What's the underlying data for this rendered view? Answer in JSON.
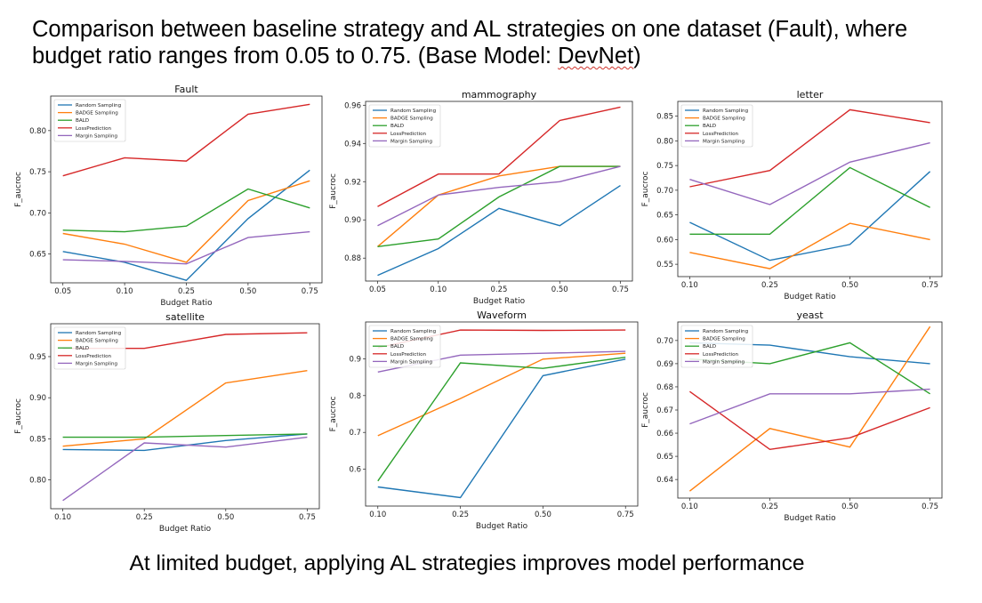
{
  "slide": {
    "title_main": "Comparison between baseline strategy and AL strategies on one dataset (Fault), where budget ratio ranges from 0.05 to 0.75. (Base Model: ",
    "title_underlined": "DevNet",
    "title_end": ")",
    "footer": "At limited budget, applying AL strategies improves model performance"
  },
  "colors": {
    "Random Sampling": "#1f77b4",
    "BADGE Sampling": "#ff7f0e",
    "BALD": "#2ca02c",
    "LossPrediction": "#d62728",
    "Margin Sampling": "#9467bd"
  },
  "chart_data": [
    {
      "type": "line",
      "title": "Fault",
      "xlabel": "Budget Ratio",
      "ylabel": "F_aucroc",
      "categories": [
        "0.05",
        "0.10",
        "0.25",
        "0.50",
        "0.75"
      ],
      "ylim": [
        0.615,
        0.842
      ],
      "yticks": [
        "0.65",
        "0.70",
        "0.75",
        "0.80"
      ],
      "legend": "top-left",
      "series": [
        {
          "name": "Random Sampling",
          "values": [
            0.653,
            0.64,
            0.618,
            0.693,
            0.752
          ]
        },
        {
          "name": "BADGE Sampling",
          "values": [
            0.675,
            0.662,
            0.64,
            0.715,
            0.739
          ]
        },
        {
          "name": "BALD",
          "values": [
            0.679,
            0.677,
            0.684,
            0.729,
            0.706
          ]
        },
        {
          "name": "LossPrediction",
          "values": [
            0.745,
            0.767,
            0.763,
            0.82,
            0.832
          ]
        },
        {
          "name": "Margin Sampling",
          "values": [
            0.643,
            0.641,
            0.638,
            0.67,
            0.677
          ]
        }
      ]
    },
    {
      "type": "line",
      "title": "mammography",
      "xlabel": "Budget Ratio",
      "ylabel": "F_aucroc",
      "categories": [
        "0.05",
        "0.10",
        "0.25",
        "0.50",
        "0.75"
      ],
      "ylim": [
        0.868,
        0.962
      ],
      "yticks": [
        "0.88",
        "0.90",
        "0.92",
        "0.94",
        "0.96"
      ],
      "legend": "top-left",
      "series": [
        {
          "name": "Random Sampling",
          "values": [
            0.871,
            0.885,
            0.906,
            0.897,
            0.918
          ]
        },
        {
          "name": "BADGE Sampling",
          "values": [
            0.886,
            0.913,
            0.923,
            0.928,
            0.928
          ]
        },
        {
          "name": "BALD",
          "values": [
            0.886,
            0.89,
            0.912,
            0.928,
            0.928
          ]
        },
        {
          "name": "LossPrediction",
          "values": [
            0.907,
            0.924,
            0.924,
            0.952,
            0.959
          ]
        },
        {
          "name": "Margin Sampling",
          "values": [
            0.897,
            0.913,
            0.917,
            0.92,
            0.928
          ]
        }
      ]
    },
    {
      "type": "line",
      "title": "letter",
      "xlabel": "Budget Ratio",
      "ylabel": "F_aucroc",
      "categories": [
        "0.10",
        "0.25",
        "0.50",
        "0.75"
      ],
      "ylim": [
        0.525,
        0.88
      ],
      "yticks": [
        "0.55",
        "0.60",
        "0.65",
        "0.70",
        "0.75",
        "0.80",
        "0.85"
      ],
      "legend": "top-left",
      "series": [
        {
          "name": "Random Sampling",
          "values": [
            0.635,
            0.558,
            0.59,
            0.738
          ]
        },
        {
          "name": "BADGE Sampling",
          "values": [
            0.574,
            0.541,
            0.633,
            0.6
          ]
        },
        {
          "name": "BALD",
          "values": [
            0.611,
            0.611,
            0.746,
            0.665
          ]
        },
        {
          "name": "LossPrediction",
          "values": [
            0.707,
            0.74,
            0.863,
            0.837
          ]
        },
        {
          "name": "Margin Sampling",
          "values": [
            0.722,
            0.671,
            0.757,
            0.796
          ]
        }
      ]
    },
    {
      "type": "line",
      "title": "satellite",
      "xlabel": "Budget Ratio",
      "ylabel": "F_aucroc",
      "categories": [
        "0.10",
        "0.25",
        "0.50",
        "0.75"
      ],
      "ylim": [
        0.765,
        0.99
      ],
      "yticks": [
        "0.80",
        "0.85",
        "0.90",
        "0.95"
      ],
      "legend": "top-left",
      "series": [
        {
          "name": "Random Sampling",
          "values": [
            0.837,
            0.836,
            0.848,
            0.856
          ]
        },
        {
          "name": "BADGE Sampling",
          "values": [
            0.841,
            0.85,
            0.918,
            0.933
          ]
        },
        {
          "name": "BALD",
          "values": [
            0.852,
            0.852,
            0.854,
            0.856
          ]
        },
        {
          "name": "LossPrediction",
          "values": [
            0.96,
            0.96,
            0.977,
            0.979
          ]
        },
        {
          "name": "Margin Sampling",
          "values": [
            0.775,
            0.845,
            0.84,
            0.852
          ]
        }
      ]
    },
    {
      "type": "line",
      "title": "Waveform",
      "xlabel": "Budget Ratio",
      "ylabel": "F_aucroc",
      "categories": [
        "0.10",
        "0.25",
        "0.50",
        "0.75"
      ],
      "ylim": [
        0.5,
        1.0
      ],
      "yticks": [
        "0.6",
        "0.7",
        "0.8",
        "0.9"
      ],
      "legend": "top-left",
      "series": [
        {
          "name": "Random Sampling",
          "values": [
            0.552,
            0.523,
            0.854,
            0.899
          ]
        },
        {
          "name": "BADGE Sampling",
          "values": [
            0.691,
            0.792,
            0.899,
            0.915
          ]
        },
        {
          "name": "BALD",
          "values": [
            0.568,
            0.889,
            0.874,
            0.904
          ]
        },
        {
          "name": "LossPrediction",
          "values": [
            0.93,
            0.978,
            0.977,
            0.978
          ]
        },
        {
          "name": "Margin Sampling",
          "values": [
            0.864,
            0.91,
            0.915,
            0.92
          ]
        }
      ]
    },
    {
      "type": "line",
      "title": "yeast",
      "xlabel": "Budget Ratio",
      "ylabel": "F_aucroc",
      "categories": [
        "0.10",
        "0.25",
        "0.50",
        "0.75"
      ],
      "ylim": [
        0.632,
        0.708
      ],
      "yticks": [
        "0.64",
        "0.65",
        "0.66",
        "0.67",
        "0.68",
        "0.69",
        "0.70"
      ],
      "legend": "top-left",
      "series": [
        {
          "name": "Random Sampling",
          "values": [
            0.699,
            0.698,
            0.693,
            0.69
          ]
        },
        {
          "name": "BADGE Sampling",
          "values": [
            0.635,
            0.662,
            0.654,
            0.706
          ]
        },
        {
          "name": "BALD",
          "values": [
            0.692,
            0.69,
            0.699,
            0.677
          ]
        },
        {
          "name": "LossPrediction",
          "values": [
            0.678,
            0.653,
            0.658,
            0.671
          ]
        },
        {
          "name": "Margin Sampling",
          "values": [
            0.664,
            0.677,
            0.677,
            0.679
          ]
        }
      ]
    }
  ]
}
